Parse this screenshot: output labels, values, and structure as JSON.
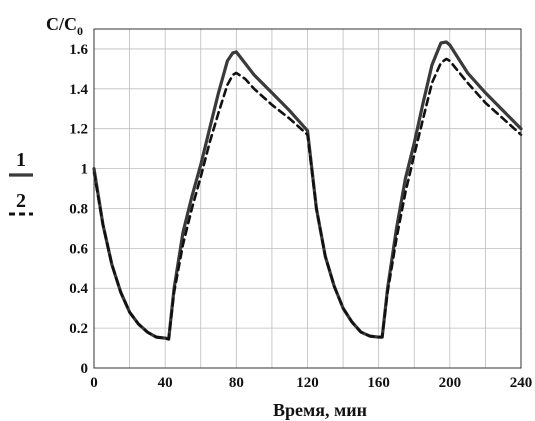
{
  "chart_data": {
    "type": "line",
    "ylabel_main": "C/C",
    "ylabel_sub": "0",
    "xlabel": "Время, мин",
    "xlim": [
      0,
      240
    ],
    "ylim": [
      0,
      1.7
    ],
    "x_ticks": [
      "0",
      "40",
      "80",
      "120",
      "160",
      "200",
      "240"
    ],
    "y_ticks": [
      "0",
      "0.2",
      "0.4",
      "0.6",
      "0.8",
      "1",
      "1.2",
      "1.4",
      "1.6"
    ],
    "grid": true,
    "legend_position": "left",
    "legend": [
      {
        "label": "1",
        "style": "solid"
      },
      {
        "label": "2",
        "style": "dashed"
      }
    ],
    "series": [
      {
        "style": "solid",
        "color": "#3a3a3a",
        "points": [
          [
            0,
            1.0
          ],
          [
            5,
            0.72
          ],
          [
            10,
            0.52
          ],
          [
            15,
            0.38
          ],
          [
            20,
            0.28
          ],
          [
            25,
            0.22
          ],
          [
            30,
            0.18
          ],
          [
            35,
            0.155
          ],
          [
            40,
            0.15
          ],
          [
            42,
            0.145
          ],
          [
            45,
            0.4
          ],
          [
            50,
            0.68
          ],
          [
            55,
            0.86
          ],
          [
            60,
            1.02
          ],
          [
            65,
            1.2
          ],
          [
            70,
            1.38
          ],
          [
            75,
            1.54
          ],
          [
            78,
            1.58
          ],
          [
            80,
            1.585
          ],
          [
            83,
            1.55
          ],
          [
            90,
            1.47
          ],
          [
            100,
            1.38
          ],
          [
            110,
            1.29
          ],
          [
            120,
            1.19
          ],
          [
            125,
            0.8
          ],
          [
            130,
            0.56
          ],
          [
            135,
            0.41
          ],
          [
            140,
            0.3
          ],
          [
            145,
            0.23
          ],
          [
            150,
            0.18
          ],
          [
            155,
            0.16
          ],
          [
            160,
            0.155
          ],
          [
            162,
            0.155
          ],
          [
            165,
            0.4
          ],
          [
            170,
            0.7
          ],
          [
            175,
            0.95
          ],
          [
            180,
            1.13
          ],
          [
            185,
            1.33
          ],
          [
            190,
            1.52
          ],
          [
            195,
            1.63
          ],
          [
            198,
            1.635
          ],
          [
            200,
            1.62
          ],
          [
            210,
            1.48
          ],
          [
            220,
            1.38
          ],
          [
            230,
            1.29
          ],
          [
            240,
            1.2
          ]
        ]
      },
      {
        "style": "dashed",
        "color": "#111111",
        "points": [
          [
            0,
            0.98
          ],
          [
            5,
            0.72
          ],
          [
            10,
            0.52
          ],
          [
            15,
            0.38
          ],
          [
            20,
            0.28
          ],
          [
            25,
            0.22
          ],
          [
            30,
            0.18
          ],
          [
            35,
            0.155
          ],
          [
            40,
            0.15
          ],
          [
            42,
            0.145
          ],
          [
            45,
            0.38
          ],
          [
            50,
            0.62
          ],
          [
            55,
            0.8
          ],
          [
            60,
            0.96
          ],
          [
            65,
            1.13
          ],
          [
            70,
            1.28
          ],
          [
            75,
            1.42
          ],
          [
            78,
            1.47
          ],
          [
            80,
            1.48
          ],
          [
            85,
            1.45
          ],
          [
            90,
            1.4
          ],
          [
            100,
            1.32
          ],
          [
            110,
            1.25
          ],
          [
            120,
            1.17
          ],
          [
            125,
            0.8
          ],
          [
            130,
            0.56
          ],
          [
            135,
            0.41
          ],
          [
            140,
            0.3
          ],
          [
            145,
            0.23
          ],
          [
            150,
            0.18
          ],
          [
            155,
            0.16
          ],
          [
            160,
            0.155
          ],
          [
            162,
            0.155
          ],
          [
            165,
            0.38
          ],
          [
            170,
            0.65
          ],
          [
            175,
            0.88
          ],
          [
            180,
            1.07
          ],
          [
            185,
            1.25
          ],
          [
            190,
            1.43
          ],
          [
            195,
            1.53
          ],
          [
            198,
            1.55
          ],
          [
            200,
            1.54
          ],
          [
            210,
            1.43
          ],
          [
            220,
            1.33
          ],
          [
            230,
            1.25
          ],
          [
            240,
            1.17
          ]
        ]
      }
    ]
  }
}
